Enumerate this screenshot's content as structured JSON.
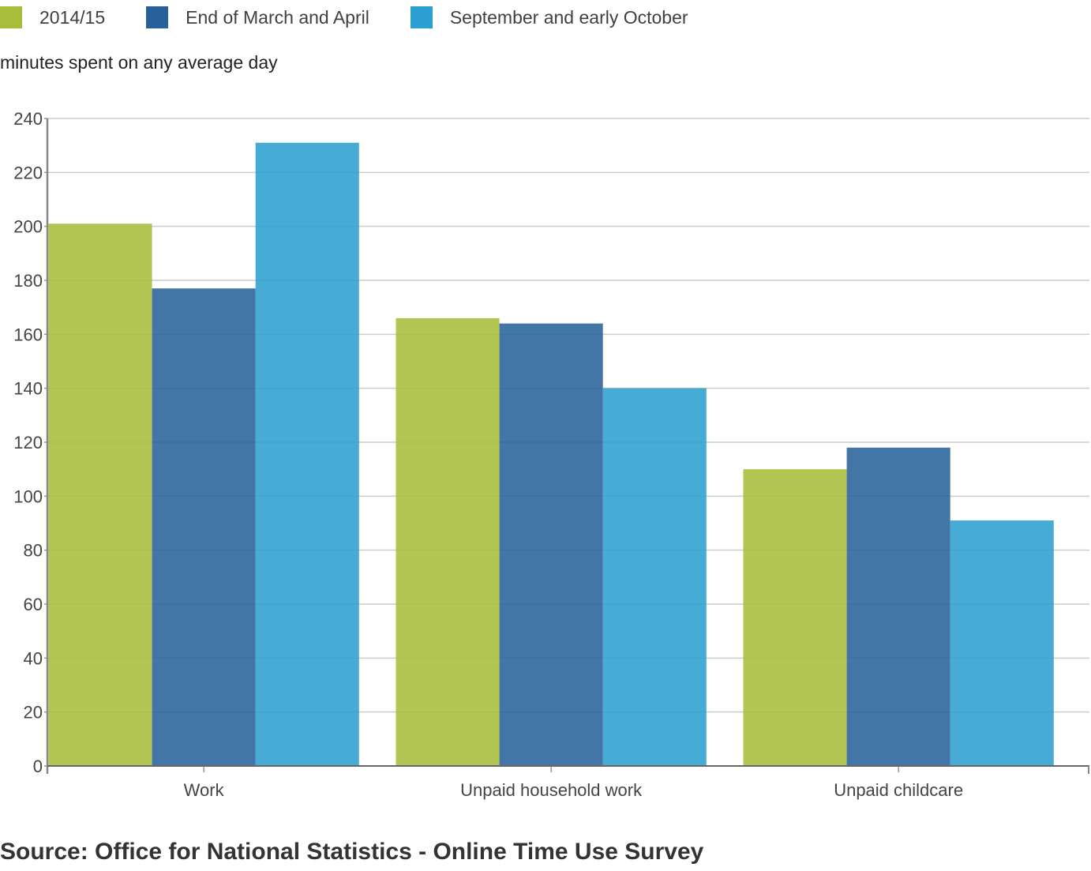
{
  "legend": [
    {
      "label": "2014/15",
      "color": "#a8bd3a"
    },
    {
      "label": "End of March and April",
      "color": "#27609a"
    },
    {
      "label": "September and early October",
      "color": "#2b9fcf"
    }
  ],
  "units_label": "minutes spent on any average day",
  "source": "Source: Office for National Statistics - Online Time Use Survey",
  "chart_data": {
    "type": "bar",
    "title": "",
    "xlabel": "",
    "ylabel": "minutes spent on any average day",
    "categories": [
      "Work",
      "Unpaid household work",
      "Unpaid childcare"
    ],
    "series": [
      {
        "name": "2014/15",
        "color": "#a8bd3a",
        "values": [
          201,
          166,
          110
        ]
      },
      {
        "name": "End of March and April",
        "color": "#27609a",
        "values": [
          177,
          164,
          118
        ]
      },
      {
        "name": "September and early October",
        "color": "#2b9fcf",
        "values": [
          231,
          140,
          91
        ]
      }
    ],
    "ylim": [
      0,
      240
    ],
    "yticks": [
      0,
      20,
      40,
      60,
      80,
      100,
      120,
      140,
      160,
      180,
      200,
      220,
      240
    ],
    "grid": true,
    "legend_position": "top-left"
  }
}
